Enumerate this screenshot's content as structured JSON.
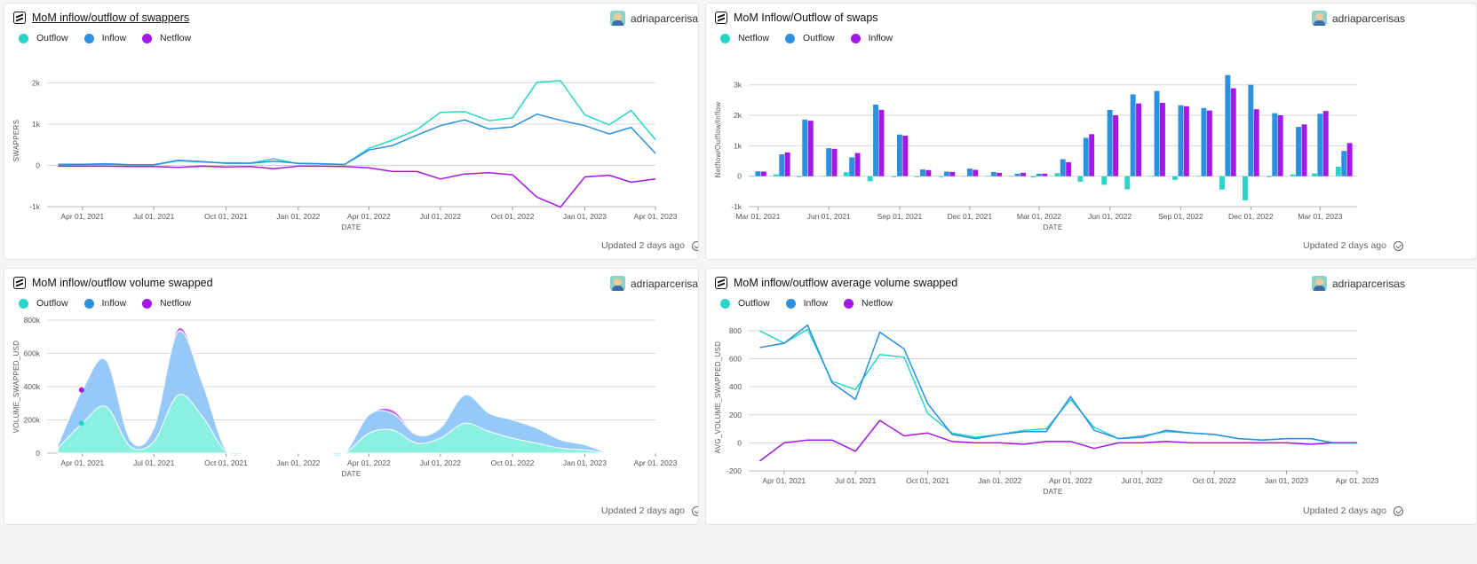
{
  "colors": {
    "teal": "#2bd4c8",
    "blue": "#2b90e0",
    "purple": "#a517e6"
  },
  "cards": [
    {
      "title": "MoM inflow/outflow of swappers",
      "author": "adriaparcerisas",
      "updated": "Updated 2 days ago",
      "legend": [
        "Outflow",
        "Inflow",
        "Netflow"
      ]
    },
    {
      "title": "MoM Inflow/Outflow of swaps",
      "author": "adriaparcerisas",
      "updated": "Updated 2 days ago",
      "legend": [
        "Netflow",
        "Outflow",
        "Inflow"
      ]
    },
    {
      "title": "MoM inflow/outflow volume swapped",
      "author": "adriaparcerisas",
      "updated": "Updated 2 days ago",
      "legend": [
        "Outflow",
        "Inflow",
        "Netflow"
      ]
    },
    {
      "title": "MoM inflow/outflow average volume swapped",
      "author": "adriaparcerisas",
      "updated": "Updated 2 days ago",
      "legend": [
        "Outflow",
        "Inflow",
        "Netflow"
      ]
    }
  ],
  "chart_data": [
    {
      "type": "line",
      "xlabel": "DATE",
      "ylabel": "SWAPPERS",
      "ylim": [
        -1000,
        2200
      ],
      "yticks": [
        -1000,
        0,
        1000,
        2000
      ],
      "ytick_labels": [
        "-1k",
        "0",
        "1k",
        "2k"
      ],
      "xticks": [
        "Apr 01, 2021",
        "Jul 01, 2021",
        "Oct 01, 2021",
        "Jan 01, 2022",
        "Apr 01, 2022",
        "Jul 01, 2022",
        "Oct 01, 2022",
        "Jan 01, 2023",
        "Apr 01, 2023"
      ],
      "x": [
        "2021-03-01",
        "2021-04-01",
        "2021-05-01",
        "2021-06-01",
        "2021-07-01",
        "2021-08-01",
        "2021-09-01",
        "2021-10-01",
        "2021-11-01",
        "2021-12-01",
        "2022-01-01",
        "2022-02-01",
        "2022-03-01",
        "2022-04-01",
        "2022-05-01",
        "2022-06-01",
        "2022-07-01",
        "2022-08-01",
        "2022-09-01",
        "2022-10-01",
        "2022-11-01",
        "2022-12-01",
        "2023-01-01",
        "2023-02-01",
        "2023-03-01",
        "2023-04-01"
      ],
      "series": [
        {
          "name": "Outflow",
          "values": [
            10,
            15,
            25,
            10,
            10,
            110,
            80,
            60,
            55,
            160,
            40,
            30,
            20,
            410,
            610,
            860,
            1280,
            1300,
            1080,
            1150,
            2010,
            2050,
            1220,
            980,
            1330,
            620
          ]
        },
        {
          "name": "Inflow",
          "values": [
            25,
            25,
            40,
            15,
            15,
            120,
            90,
            50,
            50,
            100,
            50,
            40,
            20,
            370,
            480,
            730,
            960,
            1100,
            880,
            930,
            1240,
            1090,
            960,
            760,
            920,
            290
          ]
        },
        {
          "name": "Netflow",
          "values": [
            -20,
            -20,
            -20,
            -30,
            -30,
            -50,
            -20,
            -40,
            -30,
            -80,
            -20,
            -20,
            -30,
            -60,
            -150,
            -150,
            -330,
            -210,
            -180,
            -230,
            -770,
            -1010,
            -280,
            -240,
            -410,
            -330
          ]
        }
      ]
    },
    {
      "type": "bar",
      "xlabel": "DATE",
      "ylabel": "Netflow/Outflow/Inflow",
      "ylim": [
        -1000,
        3400
      ],
      "yticks": [
        -1000,
        0,
        1000,
        2000,
        3000
      ],
      "ytick_labels": [
        "-1k",
        "0",
        "1k",
        "2k",
        "3k"
      ],
      "xticks": [
        "Mar 01, 2021",
        "Jun 01, 2021",
        "Sep 01, 2021",
        "Dec 01, 2021",
        "Mar 01, 2022",
        "Jun 01, 2022",
        "Sep 01, 2022",
        "Dec 01, 2022",
        "Mar 01, 2023"
      ],
      "x": [
        "2021-03-01",
        "2021-04-01",
        "2021-05-01",
        "2021-06-01",
        "2021-07-01",
        "2021-08-01",
        "2021-09-01",
        "2021-10-01",
        "2021-11-01",
        "2021-12-01",
        "2022-01-01",
        "2022-02-01",
        "2022-03-01",
        "2022-04-01",
        "2022-05-01",
        "2022-06-01",
        "2022-07-01",
        "2022-08-01",
        "2022-09-01",
        "2022-10-01",
        "2022-11-01",
        "2022-12-01",
        "2023-01-01",
        "2023-02-01",
        "2023-03-01",
        "2023-04-01"
      ],
      "series": [
        {
          "name": "Netflow",
          "values": [
            0,
            60,
            -30,
            0,
            130,
            -170,
            -30,
            -30,
            -30,
            0,
            0,
            0,
            -40,
            100,
            -180,
            -280,
            -430,
            0,
            -120,
            0,
            -440,
            -790,
            -30,
            60,
            90,
            310
          ]
        },
        {
          "name": "Outflow",
          "values": [
            160,
            720,
            1860,
            920,
            620,
            2350,
            1370,
            220,
            150,
            250,
            140,
            80,
            80,
            560,
            1260,
            2180,
            2690,
            2800,
            2330,
            2240,
            3320,
            3000,
            2070,
            1620,
            2050,
            830
          ]
        },
        {
          "name": "Inflow",
          "values": [
            150,
            780,
            1820,
            900,
            760,
            2180,
            1330,
            200,
            140,
            210,
            110,
            110,
            80,
            460,
            1380,
            2000,
            2390,
            2410,
            2300,
            2160,
            2890,
            2200,
            2000,
            1700,
            2140,
            1090
          ]
        }
      ]
    },
    {
      "type": "area",
      "xlabel": "DATE",
      "ylabel": "VOLUME_SWAPPED_USD",
      "ylim": [
        0,
        800000
      ],
      "yticks": [
        0,
        200000,
        400000,
        600000,
        800000
      ],
      "ytick_labels": [
        "0",
        "200k",
        "400k",
        "600k",
        "800k"
      ],
      "xticks": [
        "Apr 01, 2021",
        "Jul 01, 2021",
        "Oct 01, 2021",
        "Jan 01, 2022",
        "Apr 01, 2022",
        "Jul 01, 2022",
        "Oct 01, 2022",
        "Jan 01, 2023",
        "Apr 01, 2023"
      ],
      "x": [
        "2021-03-01",
        "2021-04-01",
        "2021-05-01",
        "2021-06-01",
        "2021-07-01",
        "2021-08-01",
        "2021-09-01",
        "2021-10-01",
        "2021-11-01",
        "2021-12-01",
        "2022-01-01",
        "2022-02-01",
        "2022-03-01",
        "2022-04-01",
        "2022-05-01",
        "2022-06-01",
        "2022-07-01",
        "2022-08-01",
        "2022-09-01",
        "2022-10-01",
        "2022-11-01",
        "2022-12-01",
        "2023-01-01",
        "2023-02-01",
        "2023-03-01",
        "2023-04-01"
      ],
      "series": [
        {
          "name": "Outflow",
          "values": [
            30000,
            180000,
            280000,
            40000,
            70000,
            350000,
            220000,
            10000,
            0,
            0,
            0,
            0,
            0,
            120000,
            140000,
            60000,
            90000,
            180000,
            130000,
            90000,
            60000,
            30000,
            20000,
            0,
            0,
            0
          ]
        },
        {
          "name": "Inflow",
          "values": [
            20000,
            200000,
            280000,
            40000,
            80000,
            380000,
            200000,
            10000,
            0,
            0,
            0,
            0,
            0,
            110000,
            100000,
            50000,
            60000,
            170000,
            110000,
            110000,
            90000,
            50000,
            30000,
            0,
            0,
            0
          ]
        },
        {
          "name": "Netflow",
          "values": [
            0,
            0,
            0,
            0,
            0,
            20000,
            10000,
            0,
            0,
            0,
            0,
            0,
            0,
            0,
            20000,
            0,
            0,
            0,
            0,
            0,
            0,
            0,
            0,
            0,
            0,
            0
          ]
        }
      ]
    },
    {
      "type": "line",
      "xlabel": "DATE",
      "ylabel": "AVG_VOLUME_SWAPPED_USD",
      "ylim": [
        -200,
        850
      ],
      "yticks": [
        -200,
        0,
        200,
        400,
        600,
        800
      ],
      "ytick_labels": [
        "-200",
        "0",
        "200",
        "400",
        "600",
        "800"
      ],
      "xticks": [
        "Apr 01, 2021",
        "Jul 01, 2021",
        "Oct 01, 2021",
        "Jan 01, 2022",
        "Apr 01, 2022",
        "Jul 01, 2022",
        "Oct 01, 2022",
        "Jan 01, 2023",
        "Apr 01, 2023"
      ],
      "x": [
        "2021-03-01",
        "2021-04-01",
        "2021-05-01",
        "2021-06-01",
        "2021-07-01",
        "2021-08-01",
        "2021-09-01",
        "2021-10-01",
        "2021-11-01",
        "2021-12-01",
        "2022-01-01",
        "2022-02-01",
        "2022-03-01",
        "2022-04-01",
        "2022-05-01",
        "2022-06-01",
        "2022-07-01",
        "2022-08-01",
        "2022-09-01",
        "2022-10-01",
        "2022-11-01",
        "2022-12-01",
        "2023-01-01",
        "2023-02-01",
        "2023-03-01",
        "2023-04-01"
      ],
      "series": [
        {
          "name": "Outflow",
          "values": [
            800,
            710,
            810,
            440,
            380,
            630,
            610,
            210,
            70,
            40,
            60,
            90,
            100,
            310,
            110,
            30,
            50,
            80,
            70,
            60,
            30,
            20,
            30,
            30,
            0,
            0
          ]
        },
        {
          "name": "Inflow",
          "values": [
            680,
            710,
            840,
            430,
            310,
            790,
            670,
            280,
            60,
            30,
            60,
            80,
            80,
            330,
            90,
            30,
            40,
            90,
            70,
            60,
            30,
            20,
            30,
            30,
            0,
            0
          ]
        },
        {
          "name": "Netflow",
          "values": [
            -130,
            0,
            20,
            20,
            -60,
            160,
            50,
            70,
            10,
            0,
            0,
            -10,
            10,
            10,
            -40,
            0,
            0,
            10,
            0,
            0,
            0,
            0,
            0,
            -10,
            0,
            0
          ]
        }
      ]
    }
  ]
}
